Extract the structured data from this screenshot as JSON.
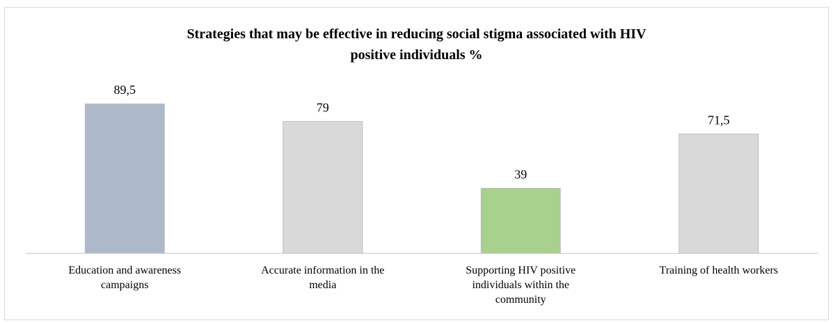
{
  "chart_data": {
    "type": "bar",
    "title_line1": "Strategies that may be effective in reducing social stigma associated with HIV",
    "title_line2": "positive individuals %",
    "categories": [
      [
        "Education and awareness",
        "campaigns"
      ],
      [
        "Accurate information in the",
        "media"
      ],
      [
        "Supporting HIV positive",
        "individuals within the",
        "community"
      ],
      [
        "Training of health workers"
      ]
    ],
    "values": [
      89.5,
      79,
      39,
      71.5
    ],
    "value_labels": [
      "89,5",
      "79",
      "39",
      "71,5"
    ],
    "colors": [
      "#adb9ca",
      "#d9d9d9",
      "#a9d18e",
      "#d9d9d9"
    ],
    "ylim": [
      0,
      100
    ],
    "grid": false,
    "legend": "none"
  }
}
